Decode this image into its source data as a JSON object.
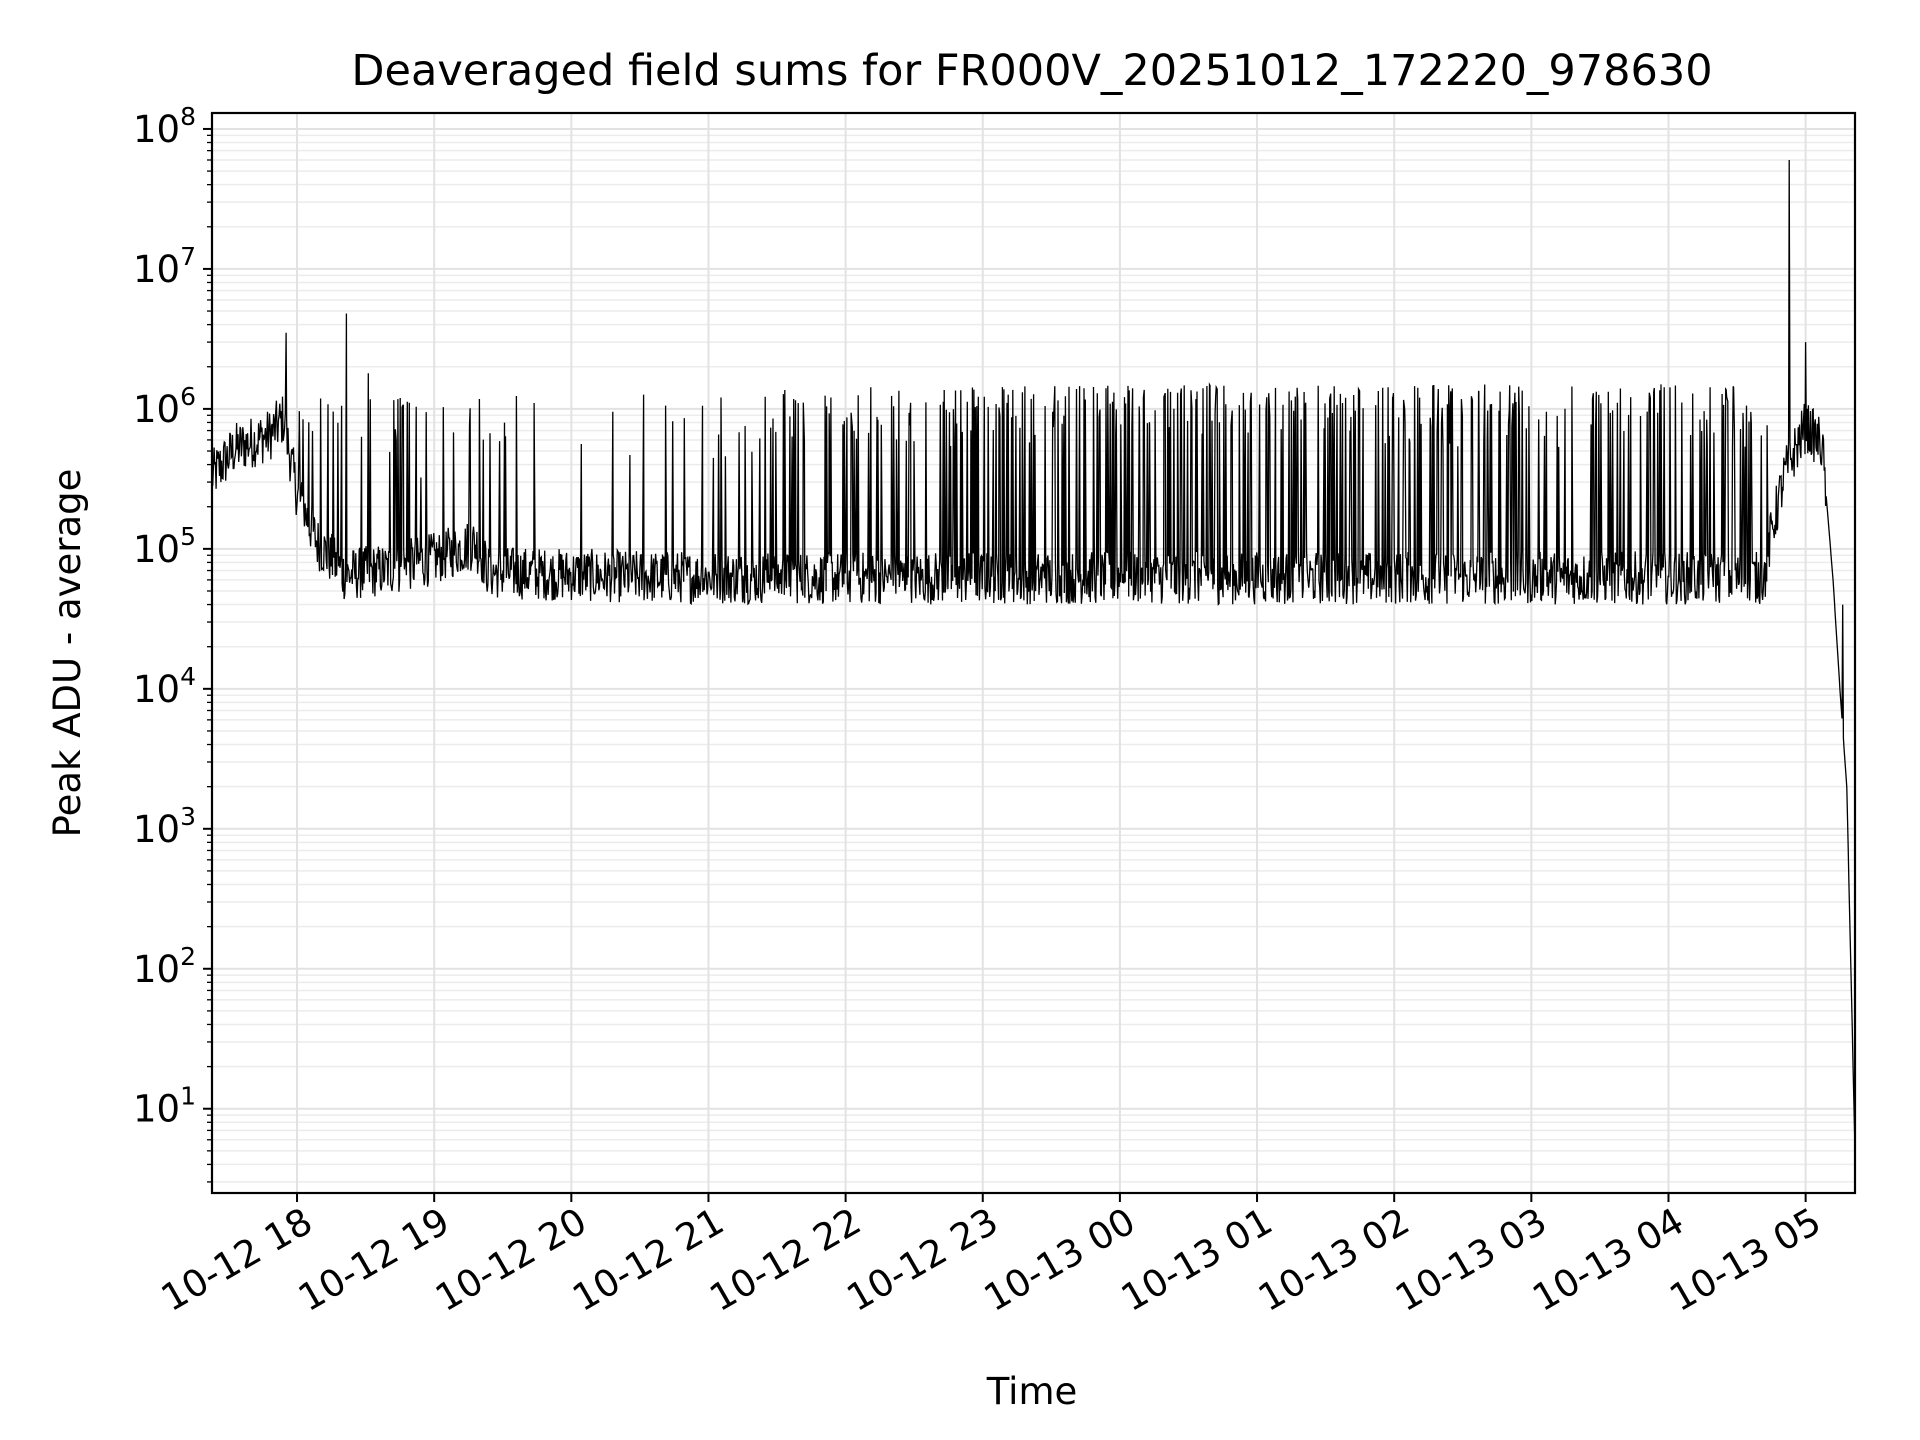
{
  "chart_data": {
    "type": "line",
    "title": "Deaveraged field sums for FR000V_20251012_172220_978630",
    "xlabel": "Time",
    "ylabel": "Peak ADU - average",
    "yscale": "log",
    "ylim": [
      2.5,
      130000000
    ],
    "xlim_hours": [
      -0.62,
      11.36
    ],
    "x_unit": "hours since 2025-10-12 18:00",
    "grid": "major and minor, both axes",
    "x_tick_labels": [
      "10-12 18",
      "10-12 19",
      "10-12 20",
      "10-12 21",
      "10-12 22",
      "10-12 23",
      "10-13 00",
      "10-13 01",
      "10-13 02",
      "10-13 03",
      "10-13 04",
      "10-13 05"
    ],
    "x_tick_values": [
      0,
      1,
      2,
      3,
      4,
      5,
      6,
      7,
      8,
      9,
      10,
      11
    ],
    "y_ticks": [
      {
        "value": 10,
        "base": "10",
        "exp": "1"
      },
      {
        "value": 100,
        "base": "10",
        "exp": "2"
      },
      {
        "value": 1000,
        "base": "10",
        "exp": "3"
      },
      {
        "value": 10000,
        "base": "10",
        "exp": "4"
      },
      {
        "value": 100000,
        "base": "10",
        "exp": "5"
      },
      {
        "value": 1000000,
        "base": "10",
        "exp": "6"
      },
      {
        "value": 10000000,
        "base": "10",
        "exp": "7"
      },
      {
        "value": 100000000,
        "base": "10",
        "exp": "8"
      }
    ],
    "series": [
      {
        "name": "Peak ADU - average",
        "color": "#000000",
        "baseline_segments": [
          {
            "x": -0.62,
            "y": 330000
          },
          {
            "x": -0.45,
            "y": 520000
          },
          {
            "x": -0.2,
            "y": 650000
          },
          {
            "x": -0.1,
            "y": 850000
          },
          {
            "x": 0.0,
            "y": 250000
          },
          {
            "x": 0.15,
            "y": 110000
          },
          {
            "x": 0.35,
            "y": 65000
          },
          {
            "x": 0.7,
            "y": 72000
          },
          {
            "x": 1.0,
            "y": 85000
          },
          {
            "x": 1.3,
            "y": 110000
          },
          {
            "x": 1.4,
            "y": 68000
          },
          {
            "x": 2.5,
            "y": 63000
          },
          {
            "x": 4.0,
            "y": 62000
          },
          {
            "x": 6.0,
            "y": 62000
          },
          {
            "x": 8.0,
            "y": 62000
          },
          {
            "x": 10.7,
            "y": 62000
          },
          {
            "x": 10.75,
            "y": 130000
          },
          {
            "x": 10.85,
            "y": 350000
          },
          {
            "x": 11.0,
            "y": 750000
          },
          {
            "x": 11.12,
            "y": 550000
          },
          {
            "x": 11.2,
            "y": 60000
          },
          {
            "x": 11.25,
            "y": 10000
          },
          {
            "x": 11.3,
            "y": 2000
          },
          {
            "x": 11.36,
            "y": 5
          }
        ],
        "spike_bands": [
          {
            "x_start": -0.1,
            "x_end": 1.55,
            "count": 38,
            "min": 300000,
            "max": 1200000
          },
          {
            "x_start": 1.55,
            "x_end": 3.5,
            "count": 22,
            "min": 250000,
            "max": 1400000
          },
          {
            "x_start": 3.5,
            "x_end": 5.0,
            "count": 60,
            "min": 400000,
            "max": 1450000
          },
          {
            "x_start": 5.0,
            "x_end": 10.72,
            "count": 300,
            "min": 500000,
            "max": 1500000
          }
        ],
        "notable_peaks": [
          {
            "x": -0.08,
            "y": 3500000
          },
          {
            "x": 0.36,
            "y": 4800000
          },
          {
            "x": 0.52,
            "y": 1800000
          },
          {
            "x": 10.88,
            "y": 60000000
          },
          {
            "x": 11.0,
            "y": 3000000
          },
          {
            "x": 11.27,
            "y": 40000
          }
        ]
      }
    ]
  }
}
